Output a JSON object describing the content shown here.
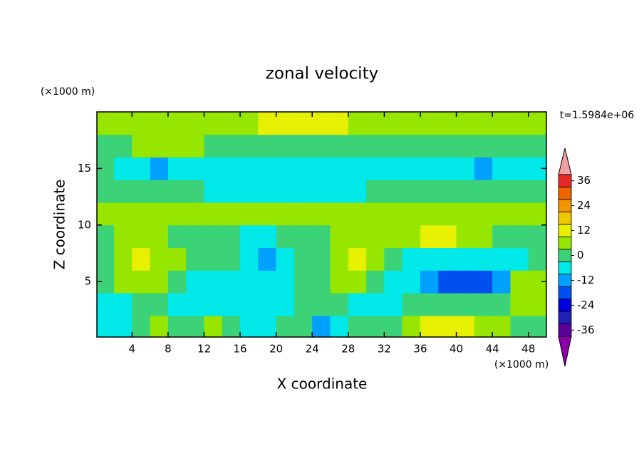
{
  "chart_data": {
    "type": "contour",
    "title": "zonal velocity",
    "xlabel": "X coordinate",
    "ylabel": "Z coordinate",
    "x_unit": "(×1000 m)",
    "y_unit": "(×1000 m)",
    "annotation": "t=1.5984e+06",
    "xlim": [
      0.1,
      50
    ],
    "ylim": [
      0.1,
      20
    ],
    "xticks": [
      4,
      8,
      12,
      16,
      20,
      24,
      28,
      32,
      36,
      40,
      44,
      48
    ],
    "yticks": [
      5,
      10,
      15
    ],
    "x": [
      1,
      3,
      5,
      7,
      9,
      11,
      13,
      15,
      17,
      19,
      21,
      23,
      25,
      27,
      29,
      31,
      33,
      35,
      37,
      39,
      41,
      43,
      45,
      47,
      49
    ],
    "y": [
      1,
      3,
      5,
      7,
      9,
      11,
      13,
      15,
      17,
      19
    ],
    "z": [
      [
        -6,
        -6,
        0,
        6,
        0,
        0,
        6,
        0,
        -6,
        -6,
        0,
        0,
        -12,
        -6,
        0,
        0,
        0,
        6,
        12,
        12,
        12,
        6,
        6,
        0,
        0
      ],
      [
        -6,
        -6,
        0,
        0,
        -6,
        -6,
        -6,
        -6,
        -6,
        -6,
        -6,
        0,
        0,
        0,
        -6,
        -6,
        -6,
        0,
        0,
        0,
        0,
        0,
        0,
        6,
        6
      ],
      [
        0,
        6,
        6,
        6,
        0,
        -6,
        -6,
        -6,
        -6,
        -6,
        -6,
        0,
        0,
        6,
        6,
        0,
        -6,
        -6,
        -12,
        -18,
        -18,
        -18,
        -12,
        6,
        6
      ],
      [
        0,
        6,
        12,
        6,
        6,
        0,
        0,
        0,
        -6,
        -12,
        -6,
        0,
        0,
        6,
        12,
        6,
        0,
        -6,
        -6,
        -6,
        -6,
        -6,
        -6,
        -6,
        0
      ],
      [
        0,
        6,
        6,
        6,
        0,
        0,
        0,
        0,
        -6,
        -6,
        0,
        0,
        0,
        6,
        6,
        6,
        6,
        6,
        12,
        12,
        6,
        6,
        0,
        0,
        0
      ],
      [
        6,
        6,
        6,
        6,
        6,
        6,
        6,
        6,
        6,
        6,
        6,
        6,
        6,
        6,
        6,
        6,
        6,
        6,
        6,
        6,
        6,
        6,
        6,
        6,
        6
      ],
      [
        0,
        0,
        0,
        0,
        0,
        0,
        -6,
        -6,
        -6,
        -6,
        -6,
        -6,
        -6,
        -6,
        -6,
        0,
        0,
        0,
        0,
        0,
        0,
        0,
        0,
        0,
        0
      ],
      [
        0,
        -6,
        -6,
        -12,
        -6,
        -6,
        -6,
        -6,
        -6,
        -6,
        -6,
        -6,
        -6,
        -6,
        -6,
        -6,
        -6,
        -6,
        -6,
        -6,
        -6,
        -12,
        -6,
        -6,
        -6
      ],
      [
        0,
        0,
        6,
        6,
        6,
        6,
        0,
        0,
        0,
        0,
        0,
        0,
        0,
        0,
        0,
        0,
        0,
        0,
        0,
        0,
        0,
        0,
        0,
        0,
        0
      ],
      [
        6,
        6,
        6,
        6,
        6,
        6,
        6,
        6,
        6,
        12,
        12,
        12,
        12,
        12,
        6,
        6,
        6,
        6,
        6,
        6,
        6,
        6,
        6,
        6,
        6
      ]
    ],
    "colorbar": {
      "levels": [
        -39,
        -33,
        -27,
        -21,
        -15,
        -9,
        -3,
        3,
        9,
        15,
        21,
        27,
        33,
        39
      ],
      "colors": [
        "#8c00aa",
        "#5a0096",
        "#2020b4",
        "#0000dc",
        "#0050f0",
        "#00a0ff",
        "#00e8e8",
        "#3cd278",
        "#96e600",
        "#e6f000",
        "#f0c800",
        "#f09600",
        "#f06400",
        "#e62828",
        "#f0a0a0"
      ],
      "ticks": [
        36,
        24,
        12,
        0,
        -12,
        -24,
        -36
      ]
    }
  }
}
